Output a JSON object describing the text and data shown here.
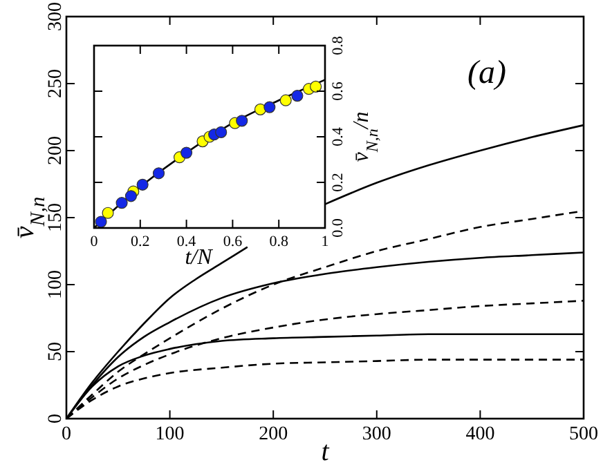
{
  "chart_data": [
    {
      "type": "line",
      "xlabel": "t",
      "ylabel": "v̄$_{N,n}$",
      "annotations": [
        "(a)"
      ],
      "xlim": [
        0,
        500
      ],
      "ylim": [
        0,
        300
      ],
      "xticks": [
        0,
        100,
        200,
        300,
        400,
        500
      ],
      "yticks": [
        0,
        50,
        100,
        150,
        200,
        250,
        300
      ],
      "x": [
        0,
        25,
        50,
        75,
        100,
        150,
        200,
        250,
        300,
        350,
        400,
        450,
        500
      ],
      "series": [
        {
          "color": "#000000",
          "line_style": "solid",
          "x": [
            0,
            25,
            50,
            75,
            100,
            125,
            150,
            175,
            215,
            250,
            300,
            350,
            400,
            450,
            500
          ],
          "values": [
            0,
            27,
            50,
            71,
            90,
            104,
            116,
            128,
            null,
            160,
            176,
            189,
            200,
            210,
            219
          ]
        },
        {
          "color": "#000000",
          "line_style": "solid",
          "values": [
            0,
            25,
            46,
            61,
            72,
            90,
            101,
            108,
            113,
            117,
            120,
            122,
            124
          ]
        },
        {
          "color": "#000000",
          "line_style": "solid",
          "values": [
            0,
            24,
            39,
            47,
            52,
            58,
            60,
            61,
            62,
            63,
            63,
            63,
            63
          ]
        },
        {
          "color": "#000000",
          "line_style": "dashed",
          "values": [
            0,
            18,
            35,
            48,
            60,
            82,
            100,
            113,
            125,
            134,
            143,
            149,
            155
          ]
        },
        {
          "color": "#000000",
          "line_style": "dashed",
          "values": [
            0,
            16,
            30,
            40,
            48,
            60,
            68,
            74,
            78,
            81,
            84,
            86,
            88
          ]
        },
        {
          "color": "#000000",
          "line_style": "dashed",
          "values": [
            0,
            14,
            24,
            30,
            34,
            38,
            41,
            42,
            43,
            44,
            44,
            44,
            44
          ]
        }
      ]
    },
    {
      "type": "scatter",
      "xlabel": "t/N",
      "y2label": "v̄$_{N,n}$/n",
      "marker": "circle",
      "xlim": [
        0,
        1
      ],
      "y2lim": [
        0,
        0.8
      ],
      "xticks": [
        0,
        0.2,
        0.4,
        0.6,
        0.8,
        1
      ],
      "y2ticks": [
        {
          "value": 0,
          "label": "0.0"
        },
        0.2,
        0.4,
        0.6,
        0.8
      ],
      "series": [
        {
          "type": "line",
          "axis": "y2",
          "marker": "none",
          "color": "#000000",
          "x": [
            0,
            0.2,
            0.4,
            0.6,
            0.8,
            1
          ],
          "values": [
            0,
            0.18,
            0.33,
            0.46,
            0.56,
            0.65
          ]
        },
        {
          "axis": "y2",
          "color": "#ffff00",
          "x": [
            0.06,
            0.17,
            0.37,
            0.47,
            0.5,
            0.61,
            0.72,
            0.83,
            0.93,
            0.96
          ],
          "values": [
            0.066,
            0.16,
            0.31,
            0.38,
            0.4,
            0.46,
            0.52,
            0.56,
            0.61,
            0.62
          ]
        },
        {
          "axis": "y2",
          "color": "#1428e6",
          "x": [
            0.03,
            0.12,
            0.16,
            0.21,
            0.28,
            0.4,
            0.52,
            0.55,
            0.64,
            0.76,
            0.88
          ],
          "values": [
            0.027,
            0.11,
            0.14,
            0.19,
            0.24,
            0.33,
            0.41,
            0.42,
            0.47,
            0.53,
            0.58
          ]
        }
      ]
    }
  ]
}
